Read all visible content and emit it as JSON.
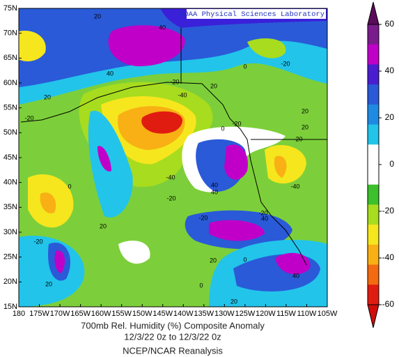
{
  "header": "NOAA Physical Sciences Laboratory",
  "lon_labels": [
    "180",
    "175W",
    "170W",
    "165W",
    "160W",
    "155W",
    "150W",
    "145W",
    "140W",
    "135W",
    "130W",
    "125W",
    "120W",
    "115W",
    "110W",
    "105W"
  ],
  "lat_labels": [
    "75N",
    "70N",
    "65N",
    "60N",
    "55N",
    "50N",
    "45N",
    "40N",
    "35N",
    "30N",
    "25N",
    "20N",
    "15N"
  ],
  "contour_labels": [
    "20",
    "40",
    "40",
    "-20",
    "-40",
    "20",
    "20",
    "-20",
    "0",
    "-20",
    "0",
    "-20",
    "20",
    "20",
    "-20",
    "-40",
    "40",
    "40",
    "-40",
    "0",
    "-20",
    "-20",
    "-20",
    "40",
    "20",
    "-20",
    "0",
    "20",
    "20",
    "0",
    "40",
    "20"
  ],
  "colorbar": {
    "lim": [
      -60,
      60
    ],
    "ticks": [
      60,
      40,
      20,
      0,
      -20,
      -40,
      -60
    ],
    "colors": [
      "#7a1c8c",
      "#c000c8",
      "#4a1ed0",
      "#2a5ad8",
      "#1f8ae2",
      "#22c4ea",
      "#ffffff",
      "#ffffff",
      "#3cc02c",
      "#a8dc1e",
      "#f6e61e",
      "#f8b014",
      "#f46a10",
      "#e01c10"
    ],
    "over": "#5a0c5a",
    "under": "#d00c0c"
  },
  "footer": [
    "700mb Rel. Humidity (%)    Composite Anomaly",
    "12/3/22 0z  to 12/3/22 0z",
    "NCEP/NCAR Reanalysis"
  ]
}
